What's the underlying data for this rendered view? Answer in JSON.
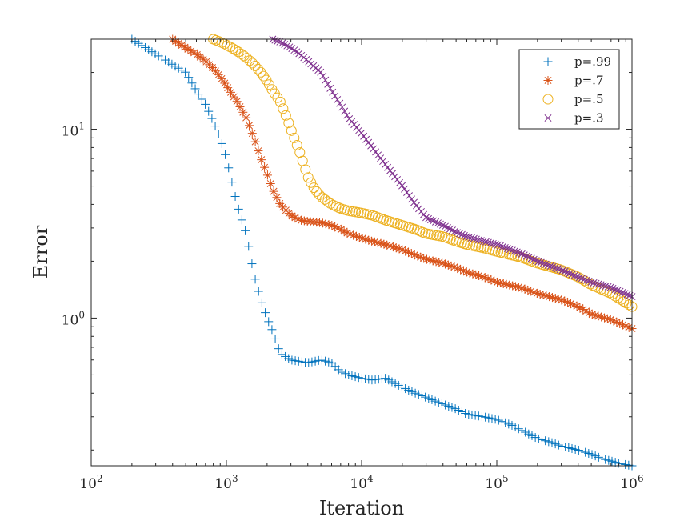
{
  "chart_data": {
    "type": "scatter",
    "xlabel": "Iteration",
    "ylabel": "Error",
    "xscale": "log",
    "yscale": "log",
    "xlim": [
      100,
      1000000
    ],
    "ylim": [
      0.165,
      30
    ],
    "grid": false,
    "legend_position": "top-right",
    "x_ticks": [
      {
        "base": "10",
        "exp": "2"
      },
      {
        "base": "10",
        "exp": "3"
      },
      {
        "base": "10",
        "exp": "4"
      },
      {
        "base": "10",
        "exp": "5"
      },
      {
        "base": "10",
        "exp": "6"
      }
    ],
    "y_ticks": [
      {
        "base": "10",
        "exp": "0"
      },
      {
        "base": "10",
        "exp": "1"
      }
    ],
    "series": [
      {
        "name": "p=.99",
        "marker": "plus",
        "color": "#0072BD",
        "points": [
          [
            200,
            30
          ],
          [
            300,
            25
          ],
          [
            400,
            22
          ],
          [
            500,
            20
          ],
          [
            600,
            16
          ],
          [
            700,
            13.5
          ],
          [
            800,
            11
          ],
          [
            900,
            9
          ],
          [
            1000,
            7
          ],
          [
            1200,
            4
          ],
          [
            1400,
            2.8
          ],
          [
            1600,
            1.7
          ],
          [
            1800,
            1.25
          ],
          [
            2000,
            1.0
          ],
          [
            2200,
            0.85
          ],
          [
            2500,
            0.65
          ],
          [
            3000,
            0.6
          ],
          [
            4000,
            0.58
          ],
          [
            5000,
            0.6
          ],
          [
            6000,
            0.58
          ],
          [
            7000,
            0.52
          ],
          [
            8000,
            0.5
          ],
          [
            10000,
            0.48
          ],
          [
            12000,
            0.47
          ],
          [
            15000,
            0.48
          ],
          [
            20000,
            0.43
          ],
          [
            25000,
            0.4
          ],
          [
            30000,
            0.38
          ],
          [
            40000,
            0.35
          ],
          [
            50000,
            0.33
          ],
          [
            60000,
            0.31
          ],
          [
            80000,
            0.3
          ],
          [
            100000,
            0.29
          ],
          [
            130000,
            0.27
          ],
          [
            160000,
            0.25
          ],
          [
            200000,
            0.23
          ],
          [
            250000,
            0.22
          ],
          [
            300000,
            0.21
          ],
          [
            400000,
            0.2
          ],
          [
            500000,
            0.19
          ],
          [
            600000,
            0.18
          ],
          [
            700000,
            0.175
          ],
          [
            800000,
            0.17
          ],
          [
            1000000,
            0.165
          ]
        ]
      },
      {
        "name": "p=.7",
        "marker": "asterisk",
        "color": "#D95319",
        "points": [
          [
            400,
            30
          ],
          [
            500,
            27
          ],
          [
            600,
            25
          ],
          [
            700,
            23
          ],
          [
            800,
            21
          ],
          [
            900,
            19
          ],
          [
            1000,
            17
          ],
          [
            1200,
            14
          ],
          [
            1400,
            11.5
          ],
          [
            1600,
            9
          ],
          [
            1800,
            7
          ],
          [
            2000,
            5.8
          ],
          [
            2200,
            4.8
          ],
          [
            2500,
            4
          ],
          [
            3000,
            3.5
          ],
          [
            3500,
            3.3
          ],
          [
            4000,
            3.25
          ],
          [
            5000,
            3.2
          ],
          [
            6000,
            3.1
          ],
          [
            7000,
            2.95
          ],
          [
            8000,
            2.8
          ],
          [
            10000,
            2.65
          ],
          [
            12000,
            2.55
          ],
          [
            15000,
            2.45
          ],
          [
            20000,
            2.3
          ],
          [
            25000,
            2.15
          ],
          [
            30000,
            2.05
          ],
          [
            40000,
            1.95
          ],
          [
            50000,
            1.85
          ],
          [
            60000,
            1.75
          ],
          [
            80000,
            1.65
          ],
          [
            100000,
            1.55
          ],
          [
            150000,
            1.45
          ],
          [
            200000,
            1.35
          ],
          [
            300000,
            1.25
          ],
          [
            400000,
            1.15
          ],
          [
            500000,
            1.05
          ],
          [
            700000,
            0.98
          ],
          [
            1000000,
            0.88
          ]
        ]
      },
      {
        "name": "p=.5",
        "marker": "circle",
        "color": "#EDB120",
        "points": [
          [
            800,
            30
          ],
          [
            900,
            29
          ],
          [
            1000,
            28
          ],
          [
            1200,
            26
          ],
          [
            1400,
            24
          ],
          [
            1600,
            22
          ],
          [
            1800,
            20
          ],
          [
            2000,
            18
          ],
          [
            2200,
            16
          ],
          [
            2500,
            14
          ],
          [
            2800,
            11.5
          ],
          [
            3000,
            10
          ],
          [
            3500,
            7.5
          ],
          [
            4000,
            5.6
          ],
          [
            4500,
            4.8
          ],
          [
            5000,
            4.4
          ],
          [
            6000,
            4.0
          ],
          [
            7000,
            3.8
          ],
          [
            8000,
            3.7
          ],
          [
            10000,
            3.6
          ],
          [
            12000,
            3.5
          ],
          [
            15000,
            3.3
          ],
          [
            20000,
            3.1
          ],
          [
            25000,
            2.95
          ],
          [
            30000,
            2.8
          ],
          [
            40000,
            2.7
          ],
          [
            50000,
            2.55
          ],
          [
            60000,
            2.45
          ],
          [
            80000,
            2.35
          ],
          [
            100000,
            2.25
          ],
          [
            150000,
            2.1
          ],
          [
            200000,
            1.95
          ],
          [
            300000,
            1.8
          ],
          [
            400000,
            1.65
          ],
          [
            500000,
            1.5
          ],
          [
            700000,
            1.35
          ],
          [
            1000000,
            1.15
          ]
        ]
      },
      {
        "name": "p=.3",
        "marker": "cross",
        "color": "#7E2F8E",
        "points": [
          [
            2200,
            30
          ],
          [
            2500,
            29
          ],
          [
            3000,
            27
          ],
          [
            3500,
            25
          ],
          [
            4000,
            23
          ],
          [
            5000,
            20
          ],
          [
            6000,
            16
          ],
          [
            7000,
            13.5
          ],
          [
            8000,
            11.5
          ],
          [
            10000,
            9.5
          ],
          [
            12000,
            8
          ],
          [
            15000,
            6.5
          ],
          [
            20000,
            5
          ],
          [
            25000,
            4
          ],
          [
            30000,
            3.4
          ],
          [
            40000,
            3.1
          ],
          [
            50000,
            2.85
          ],
          [
            60000,
            2.7
          ],
          [
            80000,
            2.55
          ],
          [
            100000,
            2.45
          ],
          [
            150000,
            2.2
          ],
          [
            200000,
            2.0
          ],
          [
            300000,
            1.8
          ],
          [
            400000,
            1.65
          ],
          [
            500000,
            1.55
          ],
          [
            700000,
            1.45
          ],
          [
            1000000,
            1.3
          ]
        ]
      }
    ]
  }
}
